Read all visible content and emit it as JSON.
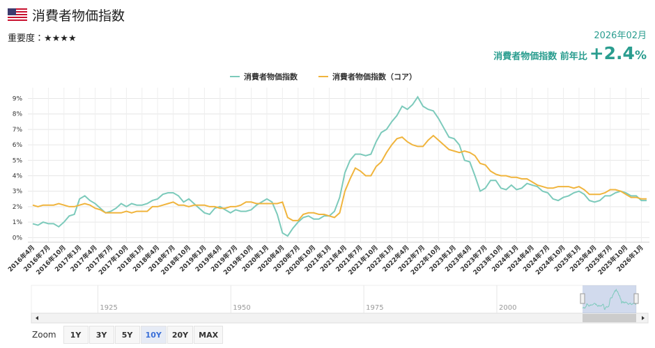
{
  "header": {
    "title": "消費者物価指数",
    "importance": "重要度：★★★★",
    "date": "2026年02月",
    "headline_label": "消費者物価指数 前年比",
    "headline_value": "+2.4",
    "headline_unit": "%"
  },
  "chart_data": {
    "type": "line",
    "categories": [
      "2016年4月",
      null,
      null,
      "2016年7月",
      null,
      null,
      "2016年10月",
      null,
      null,
      "2017年1月",
      null,
      null,
      "2017年4月",
      null,
      null,
      "2017年7月",
      null,
      null,
      "2017年10月",
      null,
      null,
      "2018年1月",
      null,
      null,
      "2018年4月",
      null,
      null,
      "2018年7月",
      null,
      null,
      "2018年10月",
      null,
      null,
      "2019年1月",
      null,
      null,
      "2019年4月",
      null,
      null,
      "2019年7月",
      null,
      null,
      "2019年10月",
      null,
      null,
      "2020年1月",
      null,
      null,
      "2020年4月",
      null,
      null,
      "2020年7月",
      null,
      null,
      "2020年10月",
      null,
      null,
      "2021年1月",
      null,
      null,
      "2021年4月",
      null,
      null,
      "2021年7月",
      null,
      null,
      "2021年10月",
      null,
      null,
      "2022年1月",
      null,
      null,
      "2022年4月",
      null,
      null,
      "2022年7月",
      null,
      null,
      "2022年10月",
      null,
      null,
      "2023年1月",
      null,
      null,
      "2023年4月",
      null,
      null,
      "2023年7月",
      null,
      null,
      "2023年10月",
      null,
      null,
      "2024年1月",
      null,
      null,
      "2024年4月",
      null,
      null,
      "2024年7月",
      null,
      null,
      "2024年10月",
      null,
      null,
      "2025年1月",
      null,
      null,
      "2025年4月",
      null,
      null,
      "2025年7月",
      null,
      null,
      "2025年10月",
      null,
      null,
      "2026年1月",
      null
    ],
    "series": [
      {
        "name": "消費者物価指数",
        "color": "#7ccabb",
        "values": [
          0.9,
          0.8,
          1.0,
          0.9,
          0.9,
          0.7,
          1.0,
          1.4,
          1.5,
          2.5,
          2.7,
          2.4,
          2.2,
          1.9,
          1.6,
          1.7,
          1.9,
          2.2,
          2.0,
          2.2,
          2.1,
          2.1,
          2.2,
          2.4,
          2.5,
          2.8,
          2.9,
          2.9,
          2.7,
          2.3,
          2.5,
          2.2,
          1.9,
          1.6,
          1.5,
          1.9,
          2.0,
          1.8,
          1.6,
          1.8,
          1.7,
          1.7,
          1.8,
          2.1,
          2.3,
          2.5,
          2.3,
          1.5,
          0.3,
          0.1,
          0.6,
          1.0,
          1.3,
          1.4,
          1.2,
          1.2,
          1.4,
          1.4,
          1.7,
          2.6,
          4.2,
          5.0,
          5.4,
          5.4,
          5.3,
          5.4,
          6.2,
          6.8,
          7.0,
          7.5,
          7.9,
          8.5,
          8.3,
          8.6,
          9.1,
          8.5,
          8.3,
          8.2,
          7.7,
          7.1,
          6.5,
          6.4,
          6.0,
          5.0,
          4.9,
          4.0,
          3.0,
          3.2,
          3.7,
          3.7,
          3.2,
          3.1,
          3.4,
          3.1,
          3.2,
          3.5,
          3.4,
          3.3,
          3.0,
          2.9,
          2.5,
          2.4,
          2.6,
          2.7,
          2.9,
          3.0,
          2.8,
          2.4,
          2.3,
          2.4,
          2.7,
          2.7,
          2.9,
          3.0,
          2.9,
          2.7,
          2.7,
          2.4,
          2.4
        ]
      },
      {
        "name": "消費者物価指数（コア）",
        "color": "#f0b43c",
        "values": [
          2.1,
          2.0,
          2.1,
          2.1,
          2.1,
          2.2,
          2.1,
          2.0,
          2.0,
          2.1,
          2.2,
          2.1,
          1.9,
          1.8,
          1.6,
          1.6,
          1.6,
          1.6,
          1.7,
          1.6,
          1.7,
          1.7,
          1.7,
          2.0,
          2.0,
          2.1,
          2.2,
          2.3,
          2.1,
          2.1,
          2.0,
          2.1,
          2.1,
          2.1,
          2.0,
          2.0,
          1.9,
          1.9,
          2.0,
          2.0,
          2.1,
          2.3,
          2.3,
          2.2,
          2.2,
          2.2,
          2.2,
          2.2,
          2.3,
          1.3,
          1.1,
          1.1,
          1.5,
          1.6,
          1.6,
          1.5,
          1.5,
          1.4,
          1.3,
          1.6,
          3.0,
          3.8,
          4.5,
          4.3,
          4.0,
          4.0,
          4.6,
          4.9,
          5.5,
          6.0,
          6.4,
          6.5,
          6.2,
          6.0,
          5.9,
          5.9,
          6.3,
          6.6,
          6.3,
          6.0,
          5.7,
          5.6,
          5.5,
          5.6,
          5.5,
          5.3,
          4.8,
          4.7,
          4.3,
          4.1,
          4.0,
          4.0,
          3.9,
          3.9,
          3.8,
          3.8,
          3.6,
          3.4,
          3.3,
          3.2,
          3.2,
          3.3,
          3.3,
          3.3,
          3.2,
          3.3,
          3.1,
          2.8,
          2.8,
          2.8,
          2.9,
          3.1,
          3.1,
          3.0,
          2.8,
          2.6,
          2.6,
          2.5,
          2.5
        ]
      }
    ],
    "ylim": [
      -0.3,
      9.7
    ],
    "yticks": [
      {
        "value": 0,
        "label": "0%"
      },
      {
        "value": 1,
        "label": "1%"
      },
      {
        "value": 2,
        "label": "2%"
      },
      {
        "value": 3,
        "label": "3%"
      },
      {
        "value": 4,
        "label": "4%"
      },
      {
        "value": 5,
        "label": "5%"
      },
      {
        "value": 6,
        "label": "6%"
      },
      {
        "value": 7,
        "label": "7%"
      },
      {
        "value": 8,
        "label": "8%"
      },
      {
        "value": 9,
        "label": "9%"
      }
    ],
    "grid": true,
    "legend": "top"
  },
  "navigator": {
    "xlim": [
      1912.5,
      2026.2
    ],
    "xticks": [
      1925,
      1950,
      1975,
      2000
    ]
  },
  "zoom": {
    "label": "Zoom",
    "buttons": [
      "1Y",
      "3Y",
      "5Y",
      "10Y",
      "20Y",
      "MAX"
    ],
    "selected": 3
  }
}
